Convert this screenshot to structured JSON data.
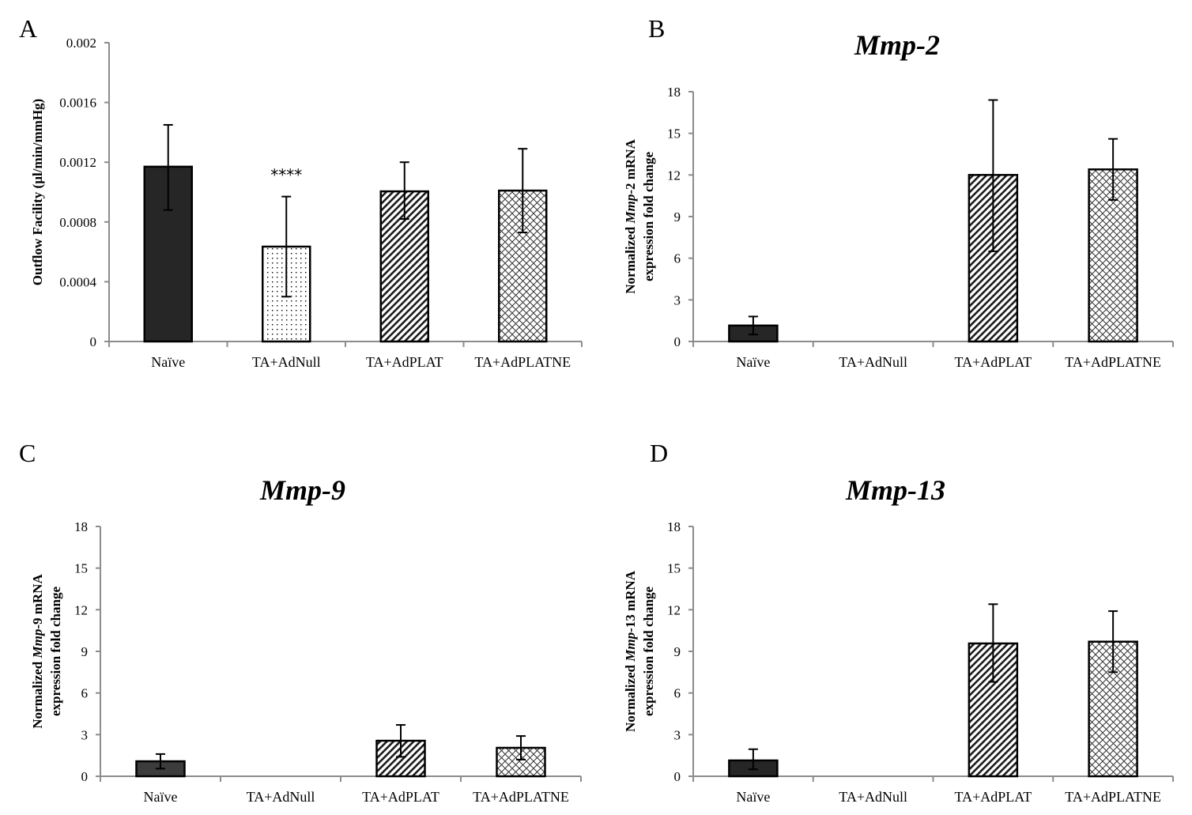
{
  "chart_data": [
    {
      "type": "bar",
      "panel": "A",
      "title": "",
      "ylabel": "Outflow Facility (µl/min/mmHg)",
      "categories": [
        "Naïve",
        "TA+AdNull",
        "TA+AdPLAT",
        "TA+AdPLATNE"
      ],
      "values": [
        0.00117,
        0.000635,
        0.001005,
        0.00101
      ],
      "error_upper": [
        0.00145,
        0.00097,
        0.0012,
        0.00129
      ],
      "error_lower": [
        0.00088,
        0.0003,
        0.00082,
        0.00073
      ],
      "patterns": [
        "solid",
        "dots",
        "diagonal",
        "crosshatch"
      ],
      "annotations": [
        {
          "category": "TA+AdNull",
          "text": "****"
        }
      ],
      "ylim": [
        0,
        0.002
      ],
      "yticks": [
        "0",
        "0.0004",
        "0.0008",
        "0.0012",
        "0.0016",
        "0.002"
      ],
      "ytick_values": [
        0,
        0.0004,
        0.0008,
        0.0012,
        0.0016,
        0.002
      ],
      "grid": false
    },
    {
      "type": "bar",
      "panel": "B",
      "title": "Mmp-2",
      "ylabel_parts": [
        "Normalized ",
        "Mmp",
        "-2 mRNA"
      ],
      "ylabel_line2": "expression fold change",
      "categories": [
        "Naïve",
        "TA+AdNull",
        "TA+AdPLAT",
        "TA+AdPLATNE"
      ],
      "values": [
        1.15,
        0,
        12.0,
        12.4
      ],
      "error_upper": [
        1.8,
        null,
        17.4,
        14.6
      ],
      "error_lower": [
        0.5,
        null,
        6.5,
        10.2
      ],
      "patterns": [
        "solid",
        "none",
        "diagonal",
        "crosshatch"
      ],
      "ylim": [
        0,
        18
      ],
      "yticks": [
        "0",
        "3",
        "6",
        "9",
        "12",
        "15",
        "18"
      ],
      "ytick_values": [
        0,
        3,
        6,
        9,
        12,
        15,
        18
      ],
      "grid": false
    },
    {
      "type": "bar",
      "panel": "C",
      "title": "Mmp-9",
      "ylabel_parts": [
        "Normalized ",
        "Mmp",
        "-9 mRNA"
      ],
      "ylabel_line2": "expression fold change",
      "categories": [
        "Naïve",
        "TA+AdNull",
        "TA+AdPLAT",
        "TA+AdPLATNE"
      ],
      "values": [
        1.08,
        0,
        2.56,
        2.05
      ],
      "error_upper": [
        1.6,
        null,
        3.7,
        2.9
      ],
      "error_lower": [
        0.55,
        null,
        1.4,
        1.2
      ],
      "patterns": [
        "solid-gray",
        "none",
        "diagonal",
        "crosshatch"
      ],
      "ylim": [
        0,
        18
      ],
      "yticks": [
        "0",
        "3",
        "6",
        "9",
        "12",
        "15",
        "18"
      ],
      "ytick_values": [
        0,
        3,
        6,
        9,
        12,
        15,
        18
      ],
      "grid": false
    },
    {
      "type": "bar",
      "panel": "D",
      "title": "Mmp-13",
      "ylabel_parts": [
        "Normalized ",
        "Mmp",
        "-13 mRNA"
      ],
      "ylabel_line2": "expression fold change",
      "categories": [
        "Naïve",
        "TA+AdNull",
        "TA+AdPLAT",
        "TA+AdPLATNE"
      ],
      "values": [
        1.14,
        0,
        9.57,
        9.7
      ],
      "error_upper": [
        1.95,
        null,
        12.4,
        11.9
      ],
      "error_lower": [
        0.5,
        null,
        6.8,
        7.5
      ],
      "patterns": [
        "solid",
        "none",
        "diagonal",
        "crosshatch"
      ],
      "ylim": [
        0,
        18
      ],
      "yticks": [
        "0",
        "3",
        "6",
        "9",
        "12",
        "15",
        "18"
      ],
      "ytick_values": [
        0,
        3,
        6,
        9,
        12,
        15,
        18
      ],
      "grid": false
    }
  ],
  "colors": {
    "bar_dark": "#262626",
    "bar_dark_gray": "#3c3c3c",
    "axis": "#8c8c8c",
    "outline": "#000000"
  }
}
